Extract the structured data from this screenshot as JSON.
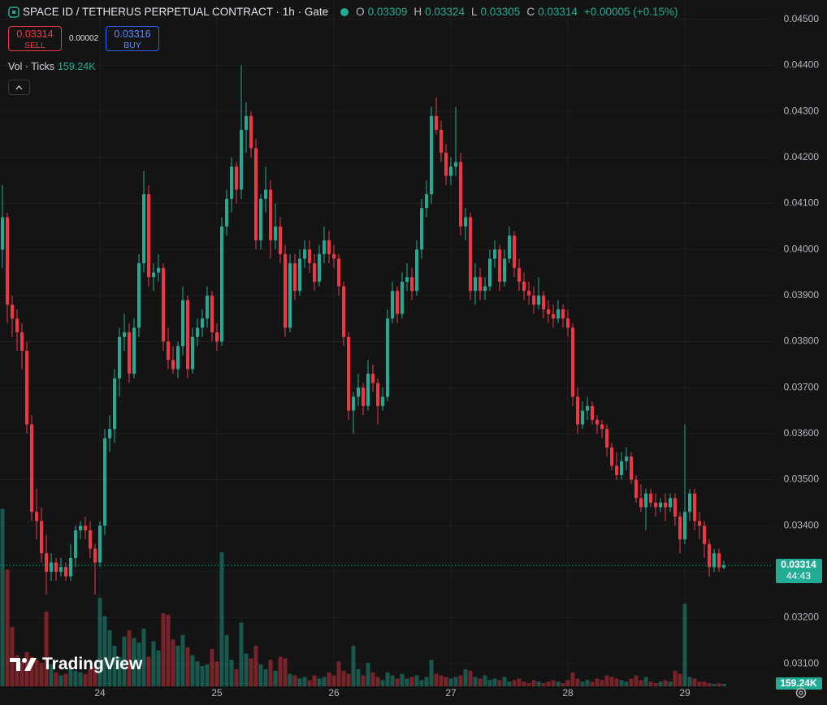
{
  "chart_data": {
    "type": "candlestick",
    "title": "SPACE ID / TETHERUS PERPETUAL CONTRACT · 1h · Gate",
    "legend_keys": [
      "O",
      "H",
      "L",
      "C"
    ],
    "change": "+0.00005 (+0.15%)",
    "volume_title": "Vol · Ticks",
    "volume_label": "159.24K",
    "countdown": "44:43",
    "up_color": "#22ab94",
    "down_color": "#f23645",
    "grid": true,
    "xlim": [
      -0.5,
      157.83
    ],
    "ylim": [
      0.03051,
      0.04542
    ],
    "volume_lim": [
      0,
      12000000
    ],
    "xticks": [
      {
        "value": 20,
        "label": "24"
      },
      {
        "value": 44,
        "label": "25"
      },
      {
        "value": 68,
        "label": "26"
      },
      {
        "value": 92,
        "label": "27"
      },
      {
        "value": 116,
        "label": "28"
      },
      {
        "value": 140,
        "label": "29"
      }
    ],
    "yticks": [
      {
        "value": 0.045,
        "label": "0.04500"
      },
      {
        "value": 0.044,
        "label": "0.04400"
      },
      {
        "value": 0.043,
        "label": "0.04300"
      },
      {
        "value": 0.042,
        "label": "0.04200"
      },
      {
        "value": 0.041,
        "label": "0.04100"
      },
      {
        "value": 0.04,
        "label": "0.04000"
      },
      {
        "value": 0.039,
        "label": "0.03900"
      },
      {
        "value": 0.038,
        "label": "0.03800"
      },
      {
        "value": 0.037,
        "label": "0.03700"
      },
      {
        "value": 0.036,
        "label": "0.03600"
      },
      {
        "value": 0.035,
        "label": "0.03500"
      },
      {
        "value": 0.034,
        "label": "0.03400"
      },
      {
        "value": 0.033,
        "label": "0.03300"
      },
      {
        "value": 0.032,
        "label": "0.03200"
      },
      {
        "value": 0.031,
        "label": "0.03100"
      }
    ],
    "ohlc": [
      [
        0.04,
        0.0414,
        0.0396,
        0.0407
      ],
      [
        0.0407,
        0.0408,
        0.0384,
        0.0388
      ],
      [
        0.0388,
        0.039,
        0.0381,
        0.0385
      ],
      [
        0.0385,
        0.0387,
        0.0378,
        0.0382
      ],
      [
        0.0382,
        0.0384,
        0.0374,
        0.0378
      ],
      [
        0.0378,
        0.038,
        0.036,
        0.0362
      ],
      [
        0.0362,
        0.0364,
        0.0341,
        0.0343
      ],
      [
        0.0343,
        0.0348,
        0.0337,
        0.0341
      ],
      [
        0.0341,
        0.0344,
        0.0332,
        0.0334
      ],
      [
        0.0334,
        0.0338,
        0.0325,
        0.033
      ],
      [
        0.033,
        0.0334,
        0.0328,
        0.0332
      ],
      [
        0.0332,
        0.0333,
        0.0328,
        0.033
      ],
      [
        0.033,
        0.0333,
        0.0329,
        0.0331
      ],
      [
        0.0331,
        0.0332,
        0.0328,
        0.0329
      ],
      [
        0.0329,
        0.0336,
        0.0328,
        0.0333
      ],
      [
        0.0333,
        0.034,
        0.0331,
        0.0339
      ],
      [
        0.0339,
        0.0341,
        0.0337,
        0.034
      ],
      [
        0.034,
        0.0342,
        0.0337,
        0.0339
      ],
      [
        0.0339,
        0.0341,
        0.0333,
        0.0335
      ],
      [
        0.0335,
        0.0336,
        0.0325,
        0.0332
      ],
      [
        0.0332,
        0.0341,
        0.0331,
        0.034
      ],
      [
        0.034,
        0.0361,
        0.0338,
        0.0359
      ],
      [
        0.0359,
        0.0364,
        0.0356,
        0.0361
      ],
      [
        0.0361,
        0.0374,
        0.0358,
        0.0372
      ],
      [
        0.0372,
        0.0383,
        0.0368,
        0.0381
      ],
      [
        0.0381,
        0.0386,
        0.0378,
        0.0382
      ],
      [
        0.0382,
        0.0384,
        0.0371,
        0.0373
      ],
      [
        0.0373,
        0.0385,
        0.0372,
        0.0383
      ],
      [
        0.0383,
        0.0399,
        0.0381,
        0.0397
      ],
      [
        0.0397,
        0.0417,
        0.0395,
        0.0412
      ],
      [
        0.0412,
        0.0414,
        0.0392,
        0.0394
      ],
      [
        0.0394,
        0.0397,
        0.0391,
        0.0395
      ],
      [
        0.0395,
        0.0399,
        0.0393,
        0.0396
      ],
      [
        0.0396,
        0.0397,
        0.0378,
        0.038
      ],
      [
        0.038,
        0.0383,
        0.0374,
        0.0376
      ],
      [
        0.0376,
        0.0379,
        0.0373,
        0.0374
      ],
      [
        0.0374,
        0.038,
        0.0372,
        0.0379
      ],
      [
        0.0379,
        0.0392,
        0.0377,
        0.0389
      ],
      [
        0.0389,
        0.039,
        0.0372,
        0.0374
      ],
      [
        0.0374,
        0.0383,
        0.0373,
        0.0381
      ],
      [
        0.0381,
        0.0385,
        0.0379,
        0.0383
      ],
      [
        0.0383,
        0.0387,
        0.0381,
        0.0385
      ],
      [
        0.0385,
        0.0392,
        0.0383,
        0.039
      ],
      [
        0.039,
        0.0391,
        0.038,
        0.0382
      ],
      [
        0.0382,
        0.0384,
        0.0378,
        0.038
      ],
      [
        0.038,
        0.0407,
        0.0379,
        0.0405
      ],
      [
        0.0405,
        0.0413,
        0.0403,
        0.0411
      ],
      [
        0.0411,
        0.042,
        0.0408,
        0.0418
      ],
      [
        0.0418,
        0.0419,
        0.041,
        0.0413
      ],
      [
        0.0413,
        0.044,
        0.0411,
        0.0426
      ],
      [
        0.0426,
        0.0432,
        0.0421,
        0.0429
      ],
      [
        0.0429,
        0.043,
        0.042,
        0.0422
      ],
      [
        0.0422,
        0.0424,
        0.04,
        0.0402
      ],
      [
        0.0402,
        0.0412,
        0.04,
        0.0411
      ],
      [
        0.0411,
        0.0418,
        0.0408,
        0.0413
      ],
      [
        0.0413,
        0.0415,
        0.0398,
        0.0402
      ],
      [
        0.0402,
        0.041,
        0.04,
        0.0405
      ],
      [
        0.0405,
        0.0407,
        0.0397,
        0.0399
      ],
      [
        0.0399,
        0.0401,
        0.0381,
        0.0383
      ],
      [
        0.0383,
        0.0399,
        0.0382,
        0.0397
      ],
      [
        0.0397,
        0.0399,
        0.0389,
        0.0391
      ],
      [
        0.0391,
        0.04,
        0.039,
        0.0398
      ],
      [
        0.0398,
        0.0402,
        0.0396,
        0.04
      ],
      [
        0.04,
        0.0402,
        0.0395,
        0.0397
      ],
      [
        0.0397,
        0.0399,
        0.0391,
        0.0393
      ],
      [
        0.0393,
        0.0401,
        0.0392,
        0.0399
      ],
      [
        0.0399,
        0.0405,
        0.0397,
        0.0402
      ],
      [
        0.0402,
        0.0404,
        0.0397,
        0.0399
      ],
      [
        0.0399,
        0.0401,
        0.0396,
        0.0398
      ],
      [
        0.0398,
        0.0399,
        0.039,
        0.0392
      ],
      [
        0.0392,
        0.0393,
        0.0379,
        0.0381
      ],
      [
        0.0381,
        0.0382,
        0.0363,
        0.0365
      ],
      [
        0.0365,
        0.0369,
        0.036,
        0.0368
      ],
      [
        0.0368,
        0.0373,
        0.0366,
        0.037
      ],
      [
        0.037,
        0.0371,
        0.0364,
        0.0366
      ],
      [
        0.0366,
        0.0376,
        0.0365,
        0.0373
      ],
      [
        0.0373,
        0.0375,
        0.0369,
        0.0371
      ],
      [
        0.0371,
        0.0372,
        0.0362,
        0.0366
      ],
      [
        0.0366,
        0.037,
        0.0365,
        0.0368
      ],
      [
        0.0368,
        0.0387,
        0.0367,
        0.0385
      ],
      [
        0.0385,
        0.0393,
        0.0384,
        0.0391
      ],
      [
        0.0391,
        0.0392,
        0.0384,
        0.0386
      ],
      [
        0.0386,
        0.0395,
        0.0385,
        0.0393
      ],
      [
        0.0393,
        0.0397,
        0.0391,
        0.0394
      ],
      [
        0.0394,
        0.0396,
        0.0389,
        0.0391
      ],
      [
        0.0391,
        0.0402,
        0.039,
        0.04
      ],
      [
        0.04,
        0.0411,
        0.0398,
        0.0409
      ],
      [
        0.0409,
        0.0415,
        0.0407,
        0.0412
      ],
      [
        0.0412,
        0.0431,
        0.041,
        0.0429
      ],
      [
        0.0429,
        0.0433,
        0.0425,
        0.0426
      ],
      [
        0.0426,
        0.0428,
        0.0419,
        0.0421
      ],
      [
        0.0421,
        0.0423,
        0.0414,
        0.0416
      ],
      [
        0.0416,
        0.042,
        0.0414,
        0.0418
      ],
      [
        0.0418,
        0.0431,
        0.0416,
        0.0419
      ],
      [
        0.0419,
        0.0421,
        0.0403,
        0.0405
      ],
      [
        0.0405,
        0.0409,
        0.0402,
        0.0407
      ],
      [
        0.0407,
        0.0408,
        0.0389,
        0.0391
      ],
      [
        0.0391,
        0.0397,
        0.0388,
        0.0394
      ],
      [
        0.0394,
        0.0396,
        0.0389,
        0.0391
      ],
      [
        0.0391,
        0.0394,
        0.0389,
        0.0392
      ],
      [
        0.0392,
        0.04,
        0.0391,
        0.0398
      ],
      [
        0.0398,
        0.0402,
        0.0396,
        0.04
      ],
      [
        0.04,
        0.0401,
        0.0391,
        0.0393
      ],
      [
        0.0393,
        0.04,
        0.0392,
        0.0398
      ],
      [
        0.0398,
        0.0405,
        0.0397,
        0.0403
      ],
      [
        0.0403,
        0.0404,
        0.0394,
        0.0396
      ],
      [
        0.0396,
        0.0398,
        0.0391,
        0.0393
      ],
      [
        0.0393,
        0.0395,
        0.0389,
        0.0391
      ],
      [
        0.0391,
        0.0393,
        0.0388,
        0.039
      ],
      [
        0.039,
        0.0392,
        0.0386,
        0.0388
      ],
      [
        0.0388,
        0.0394,
        0.0387,
        0.039
      ],
      [
        0.039,
        0.0391,
        0.0385,
        0.0387
      ],
      [
        0.0387,
        0.0389,
        0.0384,
        0.0386
      ],
      [
        0.0386,
        0.0388,
        0.0383,
        0.0385
      ],
      [
        0.0385,
        0.0389,
        0.0384,
        0.0387
      ],
      [
        0.0387,
        0.0388,
        0.0383,
        0.0385
      ],
      [
        0.0385,
        0.0387,
        0.0381,
        0.0383
      ],
      [
        0.0383,
        0.0384,
        0.0366,
        0.0368
      ],
      [
        0.0368,
        0.037,
        0.036,
        0.0362
      ],
      [
        0.0362,
        0.0367,
        0.0361,
        0.0365
      ],
      [
        0.0365,
        0.0368,
        0.0363,
        0.0366
      ],
      [
        0.0366,
        0.0367,
        0.0362,
        0.0363
      ],
      [
        0.0363,
        0.0364,
        0.036,
        0.0362
      ],
      [
        0.0362,
        0.0363,
        0.0359,
        0.0361
      ],
      [
        0.0361,
        0.0362,
        0.0355,
        0.0357
      ],
      [
        0.0357,
        0.0358,
        0.0352,
        0.0353
      ],
      [
        0.0353,
        0.0356,
        0.035,
        0.0351
      ],
      [
        0.0351,
        0.0356,
        0.035,
        0.0354
      ],
      [
        0.0354,
        0.0357,
        0.0352,
        0.0355
      ],
      [
        0.0355,
        0.0356,
        0.0349,
        0.035
      ],
      [
        0.035,
        0.0351,
        0.0345,
        0.0346
      ],
      [
        0.0346,
        0.0349,
        0.0343,
        0.0344
      ],
      [
        0.0344,
        0.0348,
        0.0339,
        0.0347
      ],
      [
        0.0347,
        0.0348,
        0.0344,
        0.0345
      ],
      [
        0.0345,
        0.0347,
        0.0342,
        0.0344
      ],
      [
        0.0344,
        0.0346,
        0.0343,
        0.0345
      ],
      [
        0.0345,
        0.0347,
        0.0341,
        0.0344
      ],
      [
        0.0344,
        0.0347,
        0.0343,
        0.0346
      ],
      [
        0.0346,
        0.0347,
        0.034,
        0.0342
      ],
      [
        0.0342,
        0.0343,
        0.0334,
        0.0337
      ],
      [
        0.0337,
        0.0362,
        0.0336,
        0.0343
      ],
      [
        0.0343,
        0.0348,
        0.0341,
        0.0347
      ],
      [
        0.0347,
        0.0348,
        0.0339,
        0.0341
      ],
      [
        0.0341,
        0.0343,
        0.0337,
        0.034
      ],
      [
        0.034,
        0.0341,
        0.0333,
        0.0336
      ],
      [
        0.0336,
        0.0337,
        0.0329,
        0.0331
      ],
      [
        0.0331,
        0.0335,
        0.033,
        0.0334
      ],
      [
        0.0334,
        0.0335,
        0.033,
        0.03309
      ],
      [
        0.03309,
        0.03324,
        0.03305,
        0.03314
      ]
    ],
    "volume": [
      11400000,
      7500000,
      3800000,
      2000000,
      1600000,
      2200000,
      1900000,
      1700000,
      1500000,
      4800000,
      1400000,
      900000,
      700000,
      800000,
      1200000,
      1000000,
      900000,
      800000,
      1100000,
      1300000,
      5700000,
      4500000,
      3600000,
      2600000,
      1900000,
      3200000,
      3600000,
      3100000,
      2800000,
      3700000,
      1900000,
      2900000,
      2300000,
      4700000,
      4600000,
      3000000,
      2600000,
      3300000,
      2500000,
      2000000,
      1600000,
      1300000,
      1400000,
      2400000,
      1600000,
      8600000,
      3300000,
      1700000,
      1100000,
      4100000,
      2100000,
      1800000,
      2600000,
      1400000,
      1100000,
      1700000,
      1000000,
      1900000,
      1800000,
      800000,
      700000,
      500000,
      600000,
      400000,
      700000,
      500000,
      600000,
      900000,
      700000,
      1600000,
      1000000,
      800000,
      2600000,
      1100000,
      700000,
      1500000,
      900000,
      600000,
      400000,
      900000,
      700000,
      500000,
      800000,
      500000,
      600000,
      700000,
      400000,
      600000,
      1700000,
      800000,
      700000,
      600000,
      500000,
      600000,
      700000,
      1100000,
      1000000,
      600000,
      500000,
      700000,
      400000,
      500000,
      400000,
      600000,
      300000,
      400000,
      500000,
      300000,
      200000,
      400000,
      300000,
      200000,
      300000,
      400000,
      300000,
      200000,
      400000,
      900000,
      500000,
      300000,
      400000,
      300000,
      500000,
      400000,
      700000,
      600000,
      500000,
      400000,
      300000,
      500000,
      700000,
      400000,
      600000,
      300000,
      200000,
      300000,
      400000,
      300000,
      1000000,
      800000,
      5300000,
      600000,
      500000,
      300000,
      300000,
      200000,
      150000,
      200000,
      159240
    ]
  },
  "trade": {
    "sell_price": 0.03314,
    "sell_label": "SELL",
    "spread": 2e-05,
    "buy_price": 0.03316,
    "buy_label": "BUY"
  },
  "watermark": "TradingView"
}
